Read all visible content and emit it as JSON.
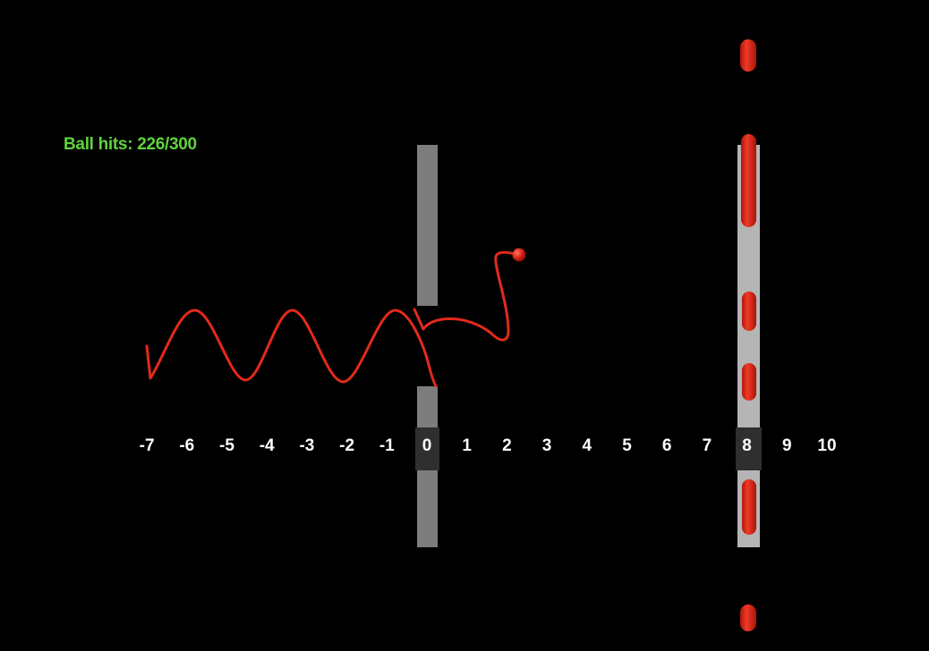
{
  "status": {
    "ball_hits_text": "Ball hits: 226/300"
  },
  "axis": {
    "ticks": [
      "-7",
      "-6",
      "-5",
      "-4",
      "-3",
      "-2",
      "-1",
      "0",
      "1",
      "2",
      "3",
      "4",
      "5",
      "6",
      "7",
      "8",
      "9",
      "10"
    ],
    "tick_values": [
      -7,
      -6,
      -5,
      -4,
      -3,
      -2,
      -1,
      0,
      1,
      2,
      3,
      4,
      5,
      6,
      7,
      8,
      9,
      10
    ]
  },
  "scene": {
    "slit_wall_position": 0,
    "detector_screen_position": 8
  },
  "colors": {
    "background": "#000000",
    "counter_text": "#5ed33b",
    "ball": "#e0271a",
    "trail": "#e22a1c",
    "slit_wall": "#7d7d7d",
    "detector_screen": "#b5b5b5",
    "axis_band": "#2f2f2f",
    "tick_text": "#ffffff"
  }
}
